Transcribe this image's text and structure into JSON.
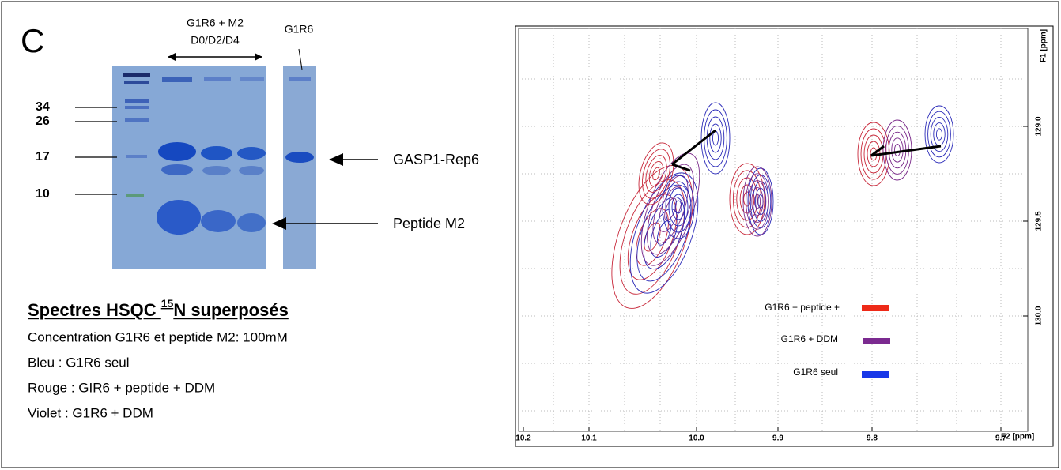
{
  "panel_label": "C",
  "gel": {
    "header_top": "G1R6 + M2",
    "header_bottom": "D0/D2/D4",
    "header_right": "G1R6",
    "markers": [
      "34",
      "26",
      "17",
      "10"
    ],
    "band_labels": [
      "GASP1-Rep6",
      "Peptide M2"
    ]
  },
  "description": {
    "heading_main": "Spectres HSQC ",
    "heading_sup": "15",
    "heading_tail": "N  superposés",
    "lines": [
      "Concentration G1R6 et peptide M2: 100mM",
      "Bleu : G1R6 seul",
      "Rouge : GIR6 + peptide + DDM",
      "Violet : G1R6 + DDM"
    ]
  },
  "spectrum": {
    "x_ticks": [
      "10.2",
      "10.1",
      "10.0",
      "9.9",
      "9.8",
      "9.7"
    ],
    "x_label": "F2 [ppm]",
    "y_ticks": [
      "129.0",
      "129.5",
      "130.0"
    ],
    "y_label": "F1 [ppm]",
    "legend": [
      "G1R6 + peptide +",
      "G1R6 + DDM",
      "G1R6 seul"
    ]
  }
}
